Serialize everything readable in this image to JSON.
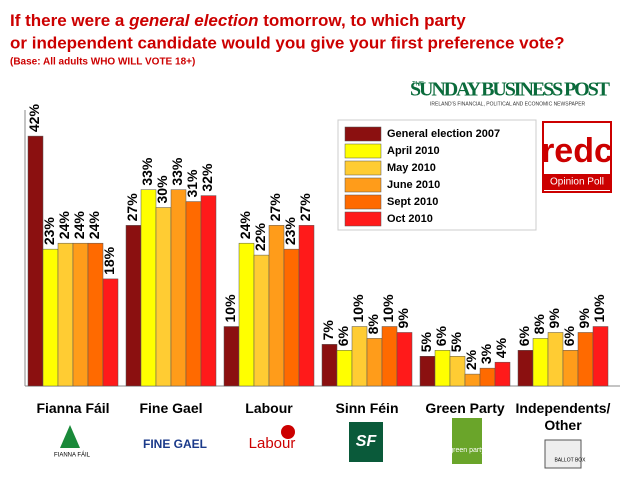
{
  "header": {
    "title_start": "If there were a ",
    "title_italic": "general election",
    "title_end": " tomorrow, to which party",
    "title_line2": "or independent candidate would you give your first preference vote?",
    "subtitle": "(Base: All adults WHO WILL VOTE 18+)"
  },
  "logos": {
    "paper_the": "THE",
    "paper_name": "SUNDAY BUSINESS POST",
    "paper_tagline": "IRELAND'S FINANCIAL, POLITICAL AND ECONOMIC NEWSPAPER",
    "pollster": "redc",
    "pollster_tag": "Opinion Poll",
    "party_logos": [
      "FIANNA FÁIL",
      "FINE GAEL",
      "Labour",
      "SF",
      "green party",
      "BALLOT BOX"
    ]
  },
  "chart_data": {
    "type": "bar",
    "categories": [
      "Fianna Fáil",
      "Fine Gael",
      "Labour",
      "Sinn Féin",
      "Green Party",
      "Independents/ Other"
    ],
    "series": [
      {
        "name": "General election 2007",
        "color": "#8b1010",
        "values": [
          42,
          27,
          10,
          7,
          5,
          6
        ],
        "value_labels": [
          "42%",
          "27%",
          "10%",
          "7%",
          "5%",
          "6%"
        ]
      },
      {
        "name": "April 2010",
        "color": "#ffff00",
        "values": [
          23,
          33,
          24,
          6,
          6,
          8
        ],
        "value_labels": [
          "23%",
          "33%",
          "24%",
          "6%",
          "6%",
          "8%"
        ]
      },
      {
        "name": "May 2010",
        "color": "#ffcc33",
        "values": [
          24,
          30,
          22,
          10,
          5,
          9
        ],
        "value_labels": [
          "24%",
          "30%",
          "22%",
          "10%",
          "5%",
          "9%"
        ]
      },
      {
        "name": "June 2010",
        "color": "#ff9c1a",
        "values": [
          24,
          33,
          27,
          8,
          2,
          6
        ],
        "value_labels": [
          "24%",
          "33%",
          "27%",
          "8%",
          "2%",
          "6%"
        ]
      },
      {
        "name": "Sept 2010",
        "color": "#ff6a00",
        "values": [
          24,
          31,
          23,
          10,
          3,
          9
        ],
        "value_labels": [
          "24%",
          "31%",
          "23%",
          "10%",
          "3%",
          "9%"
        ]
      },
      {
        "name": "Oct 2010",
        "color": "#ff1a1a",
        "values": [
          18,
          32,
          27,
          9,
          4,
          10
        ],
        "value_labels": [
          "18%",
          "32%",
          "27%",
          "9%",
          "4%",
          "10%"
        ]
      }
    ]
  }
}
